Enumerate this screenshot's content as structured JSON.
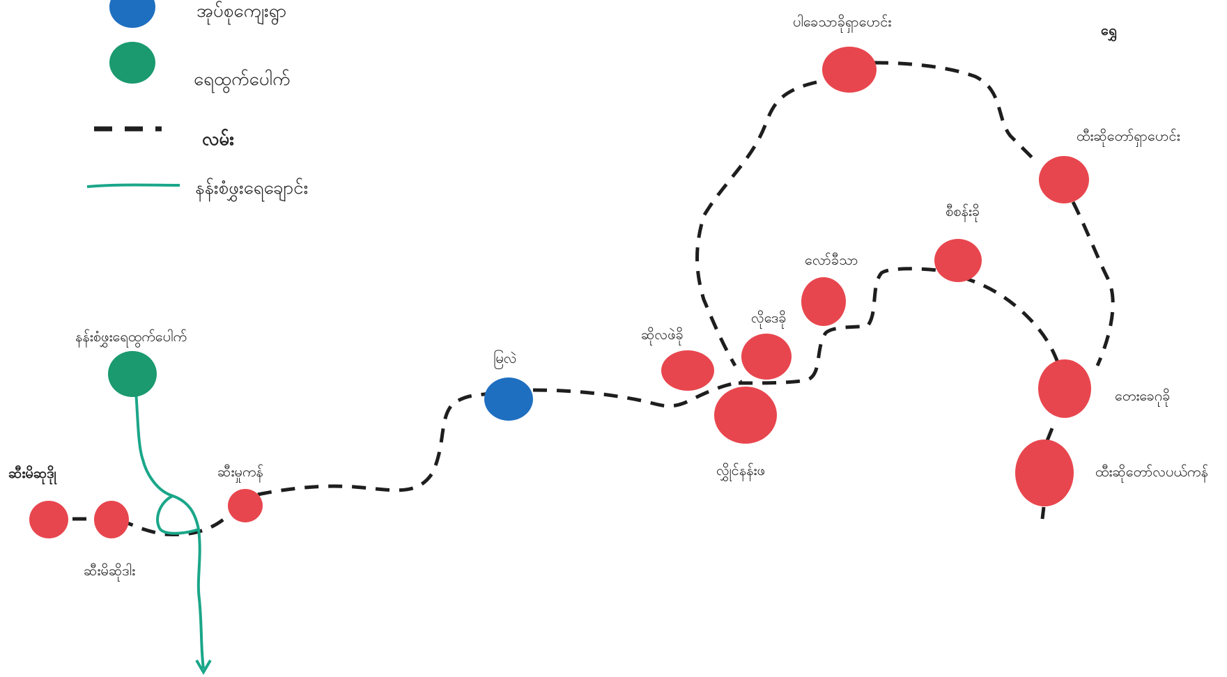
{
  "colors": {
    "village": "#e8464e",
    "village_group": "#1f6fc0",
    "water_source": "#1a9a6e",
    "road": "#1e1e1e",
    "pipeline": "#1aa689"
  },
  "legend": [
    {
      "symbol": "village-group-dot",
      "label": "အုပ်စုကျေးရွာ"
    },
    {
      "symbol": "water-source-dot",
      "label": "ရေထွက်ပေါက်"
    },
    {
      "symbol": "road-line",
      "label": "လမ်း"
    },
    {
      "symbol": "pipeline-line",
      "label": "နန်းစံဖွှးရေချောင်း"
    }
  ],
  "labels": {
    "north": "ရွှေ",
    "water_source": "နန်းစံဖွှးရေထွက်ပေါက်",
    "seimi_sokhu": "ဆီးမိဆုဒိုု",
    "seimi_sodile": "ဆီးမိဆိုဒါး",
    "seimupkan": "ဆီးမှုကန်",
    "myale": "မြလဲ",
    "sile_sanbi": "ဆိုလဖဲခို",
    "lodauk": "လိုဒေခို",
    "lawmesa": "လော်ခီသာ",
    "sisanbo": "စီစန်းခို",
    "lwainanzar": "လွှိုင်နန်းဖ",
    "pelawtha": "ပါခေသာခိုရှာပောင်း",
    "tisodaw_upper": "ထီးဆိုတော်ရှာပောင်း",
    "tawgebo": "တေးခေဂုခို",
    "tisodaw_lower": "ထီးဆိုတော်လပယ်ကန်"
  }
}
